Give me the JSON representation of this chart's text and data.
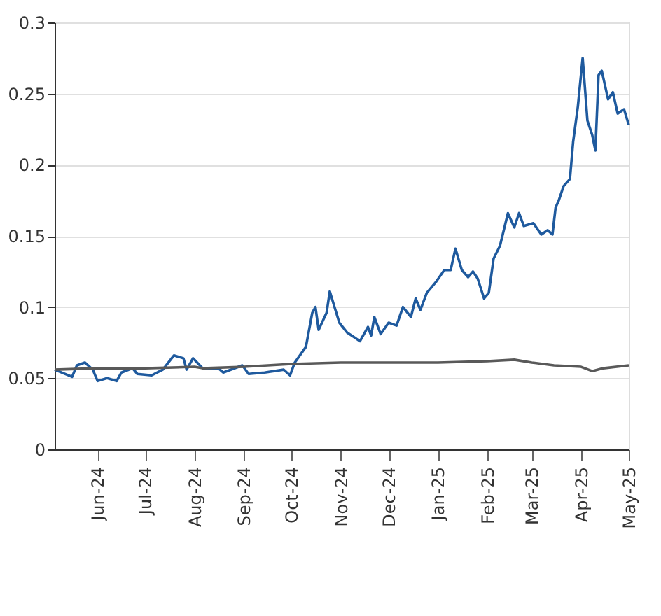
{
  "chart_data": {
    "type": "line",
    "ylim": [
      0,
      0.3
    ],
    "yticks": [
      0,
      0.05,
      0.1,
      0.15,
      0.2,
      0.25,
      0.3
    ],
    "grid": "y",
    "legend": false,
    "xlim": [
      "2024-05-05",
      "2025-05-01"
    ],
    "xticks": [
      {
        "value": "2024-06-01",
        "label": "Jun-24"
      },
      {
        "value": "2024-07-01",
        "label": "Jul-24"
      },
      {
        "value": "2024-08-01",
        "label": "Aug-24"
      },
      {
        "value": "2024-09-01",
        "label": "Sep-24"
      },
      {
        "value": "2024-10-01",
        "label": "Oct-24"
      },
      {
        "value": "2024-11-01",
        "label": "Nov-24"
      },
      {
        "value": "2024-12-01",
        "label": "Dec-24"
      },
      {
        "value": "2025-01-01",
        "label": "Jan-25"
      },
      {
        "value": "2025-02-01",
        "label": "Feb-25"
      },
      {
        "value": "2025-03-01",
        "label": "Mar-25"
      },
      {
        "value": "2025-04-01",
        "label": "Apr-25"
      },
      {
        "value": "2025-05-01",
        "label": "May-25"
      }
    ],
    "series": [
      {
        "color": "#1f5a9e",
        "x": [
          "2024-05-05",
          "2024-05-16",
          "2024-05-19",
          "2024-05-24",
          "2024-05-29",
          "2024-06-01",
          "2024-06-07",
          "2024-06-13",
          "2024-06-16",
          "2024-06-23",
          "2024-06-26",
          "2024-07-05",
          "2024-07-12",
          "2024-07-19",
          "2024-07-25",
          "2024-07-27",
          "2024-07-31",
          "2024-08-06",
          "2024-08-16",
          "2024-08-19",
          "2024-08-31",
          "2024-09-04",
          "2024-09-14",
          "2024-09-26",
          "2024-09-30",
          "2024-10-03",
          "2024-10-10",
          "2024-10-14",
          "2024-10-16",
          "2024-10-18",
          "2024-10-23",
          "2024-10-25",
          "2024-10-28",
          "2024-10-31",
          "2024-11-05",
          "2024-11-13",
          "2024-11-18",
          "2024-11-20",
          "2024-11-22",
          "2024-11-26",
          "2024-12-01",
          "2024-12-06",
          "2024-12-10",
          "2024-12-15",
          "2024-12-18",
          "2024-12-21",
          "2024-12-25",
          "2024-12-31",
          "2025-01-05",
          "2025-01-09",
          "2025-01-12",
          "2025-01-16",
          "2025-01-20",
          "2025-01-23",
          "2025-01-26",
          "2025-01-30",
          "2025-02-02",
          "2025-02-05",
          "2025-02-09",
          "2025-02-14",
          "2025-02-18",
          "2025-02-21",
          "2025-02-24",
          "2025-03-02",
          "2025-03-07",
          "2025-03-11",
          "2025-03-14",
          "2025-03-16",
          "2025-03-18",
          "2025-03-21",
          "2025-03-25",
          "2025-03-27",
          "2025-03-30",
          "2025-04-02",
          "2025-04-05",
          "2025-04-08",
          "2025-04-10",
          "2025-04-12",
          "2025-04-14",
          "2025-04-18",
          "2025-04-21",
          "2025-04-24",
          "2025-04-28",
          "2025-05-01"
        ],
        "values": [
          0.056,
          0.051,
          0.059,
          0.061,
          0.056,
          0.048,
          0.05,
          0.048,
          0.054,
          0.057,
          0.053,
          0.052,
          0.056,
          0.066,
          0.064,
          0.056,
          0.064,
          0.057,
          0.057,
          0.054,
          0.059,
          0.053,
          0.054,
          0.056,
          0.052,
          0.061,
          0.072,
          0.096,
          0.1,
          0.084,
          0.096,
          0.111,
          0.1,
          0.089,
          0.082,
          0.076,
          0.086,
          0.08,
          0.093,
          0.081,
          0.089,
          0.087,
          0.1,
          0.093,
          0.106,
          0.098,
          0.11,
          0.118,
          0.126,
          0.126,
          0.141,
          0.126,
          0.121,
          0.125,
          0.12,
          0.106,
          0.11,
          0.134,
          0.143,
          0.166,
          0.156,
          0.166,
          0.157,
          0.159,
          0.151,
          0.154,
          0.151,
          0.17,
          0.175,
          0.185,
          0.19,
          0.216,
          0.241,
          0.275,
          0.231,
          0.221,
          0.21,
          0.263,
          0.266,
          0.246,
          0.251,
          0.236,
          0.239,
          0.228
        ]
      },
      {
        "color": "#595959",
        "x": [
          "2024-05-05",
          "2024-06-01",
          "2024-07-01",
          "2024-08-01",
          "2024-08-06",
          "2024-09-01",
          "2024-10-01",
          "2024-11-01",
          "2024-12-01",
          "2025-01-01",
          "2025-02-01",
          "2025-02-18",
          "2025-03-01",
          "2025-03-15",
          "2025-04-01",
          "2025-04-08",
          "2025-04-15",
          "2025-05-01"
        ],
        "values": [
          0.056,
          0.057,
          0.057,
          0.058,
          0.057,
          0.058,
          0.06,
          0.061,
          0.061,
          0.061,
          0.062,
          0.063,
          0.061,
          0.059,
          0.058,
          0.055,
          0.057,
          0.059
        ]
      }
    ]
  }
}
